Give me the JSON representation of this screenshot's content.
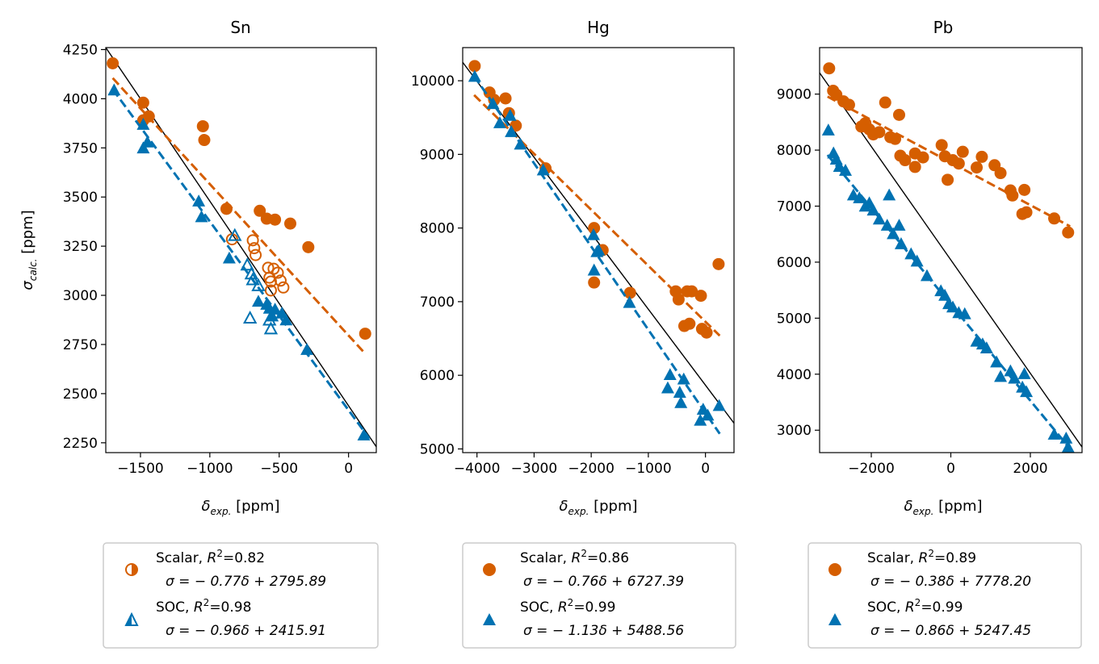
{
  "colors": {
    "scalar": "#d55e00",
    "soc": "#0072b2",
    "ideal": "#000000"
  },
  "chart_data": [
    {
      "type": "scatter",
      "title": "Sn",
      "xlabel": {
        "sym": "δ",
        "sub": "exp.",
        "unit": " [ppm]"
      },
      "ylabel": {
        "sym": "σ",
        "sub": "calc.",
        "unit": " [ppm]"
      },
      "xlim": [
        -1750,
        200
      ],
      "ylim": [
        2200,
        4260
      ],
      "xticks": [
        -1500,
        -1000,
        -500,
        0
      ],
      "xtick_labels": [
        "−1500",
        "−1000",
        "−500",
        "0"
      ],
      "yticks": [
        2250,
        2500,
        2750,
        3000,
        3250,
        3500,
        3750,
        4000,
        4250
      ],
      "ytick_labels": [
        "2250",
        "2500",
        "2750",
        "3000",
        "3250",
        "3500",
        "3750",
        "4000",
        "4250"
      ],
      "ideal_line": {
        "x": [
          -1750,
          200
        ],
        "y": [
          4260,
          2230
        ]
      },
      "series": [
        {
          "name": "Scalar",
          "marker": "circle",
          "color": "#d55e00",
          "fit": {
            "slope": -0.77,
            "intercept": 2795.89,
            "x_range": [
              -1700,
              120
            ]
          },
          "points": [
            [
              -1700,
              4180
            ],
            [
              -1480,
              3980
            ],
            [
              -1480,
              3890
            ],
            [
              -1440,
              3910
            ],
            [
              -1050,
              3860
            ],
            [
              -1040,
              3790
            ],
            [
              -880,
              3440
            ],
            [
              -640,
              3430
            ],
            [
              -590,
              3390
            ],
            [
              -530,
              3385
            ],
            [
              -420,
              3365
            ],
            [
              -290,
              3245
            ],
            [
              120,
              2805
            ]
          ],
          "hollow_points": [
            [
              -840,
              3285
            ],
            [
              -690,
              3280
            ],
            [
              -680,
              3240
            ],
            [
              -670,
              3205
            ],
            [
              -580,
              3140
            ],
            [
              -540,
              3135
            ],
            [
              -510,
              3115
            ],
            [
              -570,
              3090
            ],
            [
              -560,
              3070
            ],
            [
              -490,
              3075
            ],
            [
              -470,
              3040
            ],
            [
              -560,
              3025
            ]
          ]
        },
        {
          "name": "SOC",
          "marker": "triangle",
          "color": "#0072b2",
          "fit": {
            "slope": -0.96,
            "intercept": 2415.91,
            "x_range": [
              -1700,
              150
            ]
          },
          "points": [
            [
              -1690,
              4045
            ],
            [
              -1480,
              3870
            ],
            [
              -1480,
              3750
            ],
            [
              -1450,
              3780
            ],
            [
              -1080,
              3480
            ],
            [
              -1060,
              3400
            ],
            [
              -860,
              3190
            ],
            [
              -650,
              2970
            ],
            [
              -590,
              2955
            ],
            [
              -570,
              2935
            ],
            [
              -550,
              2895
            ],
            [
              -530,
              2930
            ],
            [
              -480,
              2910
            ],
            [
              -450,
              2875
            ],
            [
              -300,
              2725
            ],
            [
              110,
              2290
            ]
          ],
          "hollow_points": [
            [
              -820,
              3305
            ],
            [
              -730,
              3155
            ],
            [
              -700,
              3110
            ],
            [
              -690,
              3080
            ],
            [
              -650,
              3050
            ],
            [
              -710,
              2885
            ],
            [
              -570,
              2875
            ],
            [
              -560,
              2830
            ]
          ]
        }
      ],
      "legend": [
        {
          "label": "Scalar, ",
          "r2": "R",
          "r2_value": "=0.82",
          "equation": "σ = − 0.77δ + 2795.89"
        },
        {
          "label": "SOC, ",
          "r2": "R",
          "r2_value": "=0.98",
          "equation": "σ = − 0.96δ + 2415.91"
        }
      ]
    },
    {
      "type": "scatter",
      "title": "Hg",
      "xlabel": {
        "sym": "δ",
        "sub": "exp.",
        "unit": " [ppm]"
      },
      "ylabel": {
        "sym": "",
        "sub": "",
        "unit": ""
      },
      "xlim": [
        -4250,
        500
      ],
      "ylim": [
        4950,
        10450
      ],
      "xticks": [
        -4000,
        -3000,
        -2000,
        -1000,
        0
      ],
      "xtick_labels": [
        "−4000",
        "−3000",
        "−2000",
        "−1000",
        "0"
      ],
      "yticks": [
        5000,
        6000,
        7000,
        8000,
        9000,
        10000
      ],
      "ytick_labels": [
        "5000",
        "6000",
        "7000",
        "8000",
        "9000",
        "10000"
      ],
      "ideal_line": {
        "x": [
          -4250,
          500
        ],
        "y": [
          10250,
          5350
        ]
      },
      "series": [
        {
          "name": "Scalar",
          "marker": "circle",
          "color": "#d55e00",
          "fit": {
            "slope": -0.76,
            "intercept": 6727.39,
            "x_range": [
              -4050,
              250
            ]
          },
          "points": [
            [
              -4040,
              10200
            ],
            [
              -3780,
              9840
            ],
            [
              -3700,
              9740
            ],
            [
              -3500,
              9760
            ],
            [
              -3440,
              9560
            ],
            [
              -3320,
              9390
            ],
            [
              -2800,
              8810
            ],
            [
              -1950,
              8000
            ],
            [
              -1950,
              7260
            ],
            [
              -1800,
              7700
            ],
            [
              -1320,
              7120
            ],
            [
              -520,
              7140
            ],
            [
              -470,
              7030
            ],
            [
              -370,
              6670
            ],
            [
              -320,
              7140
            ],
            [
              -280,
              6700
            ],
            [
              -240,
              7140
            ],
            [
              -80,
              7080
            ],
            [
              -60,
              6630
            ],
            [
              20,
              6580
            ],
            [
              230,
              7510
            ]
          ],
          "hollow_points": []
        },
        {
          "name": "SOC",
          "marker": "triangle",
          "color": "#0072b2",
          "fit": {
            "slope": -1.13,
            "intercept": 5488.56,
            "x_range": [
              -4050,
              250
            ]
          },
          "points": [
            [
              -4040,
              10060
            ],
            [
              -3720,
              9690
            ],
            [
              -3600,
              9430
            ],
            [
              -3420,
              9530
            ],
            [
              -3400,
              9310
            ],
            [
              -3240,
              9140
            ],
            [
              -2840,
              8790
            ],
            [
              -1960,
              7910
            ],
            [
              -1950,
              7430
            ],
            [
              -1900,
              7680
            ],
            [
              -1870,
              7700
            ],
            [
              -1330,
              6990
            ],
            [
              -660,
              5830
            ],
            [
              -620,
              6010
            ],
            [
              -450,
              5770
            ],
            [
              -430,
              5630
            ],
            [
              -380,
              5950
            ],
            [
              -90,
              5390
            ],
            [
              -40,
              5540
            ],
            [
              40,
              5460
            ],
            [
              240,
              5590
            ]
          ],
          "hollow_points": []
        }
      ],
      "legend": [
        {
          "label": "Scalar, ",
          "r2": "R",
          "r2_value": "=0.86",
          "equation": "σ = − 0.76δ + 6727.39"
        },
        {
          "label": "SOC, ",
          "r2": "R",
          "r2_value": "=0.99",
          "equation": "σ = − 1.13δ + 5488.56"
        }
      ]
    },
    {
      "type": "scatter",
      "title": "Pb",
      "xlabel": {
        "sym": "δ",
        "sub": "exp.",
        "unit": " [ppm]"
      },
      "ylabel": {
        "sym": "",
        "sub": "",
        "unit": ""
      },
      "xlim": [
        -3300,
        3300
      ],
      "ylim": [
        2600,
        9830
      ],
      "xticks": [
        -2000,
        0,
        2000
      ],
      "xtick_labels": [
        "−2000",
        "0",
        "2000"
      ],
      "yticks": [
        3000,
        4000,
        5000,
        6000,
        7000,
        8000,
        9000
      ],
      "ytick_labels": [
        "3000",
        "4000",
        "5000",
        "6000",
        "7000",
        "8000",
        "9000"
      ],
      "ideal_line": {
        "x": [
          -3300,
          3300
        ],
        "y": [
          9380,
          2700
        ]
      },
      "series": [
        {
          "name": "Scalar",
          "marker": "circle",
          "color": "#d55e00",
          "fit": {
            "slope": -0.38,
            "intercept": 7778.2,
            "x_range": [
              -3100,
              3000
            ]
          },
          "points": [
            [
              -3060,
              9460
            ],
            [
              -2960,
              9060
            ],
            [
              -2880,
              8990
            ],
            [
              -2700,
              8870
            ],
            [
              -2560,
              8810
            ],
            [
              -2250,
              8420
            ],
            [
              -2150,
              8480
            ],
            [
              -2050,
              8370
            ],
            [
              -1950,
              8280
            ],
            [
              -1800,
              8320
            ],
            [
              -1650,
              8850
            ],
            [
              -1520,
              8230
            ],
            [
              -1400,
              8200
            ],
            [
              -1300,
              8630
            ],
            [
              -1270,
              7900
            ],
            [
              -1150,
              7820
            ],
            [
              -900,
              7700
            ],
            [
              -900,
              7940
            ],
            [
              -700,
              7870
            ],
            [
              -230,
              8090
            ],
            [
              -150,
              7890
            ],
            [
              -80,
              7470
            ],
            [
              50,
              7820
            ],
            [
              200,
              7760
            ],
            [
              300,
              7970
            ],
            [
              650,
              7690
            ],
            [
              780,
              7880
            ],
            [
              1100,
              7730
            ],
            [
              1250,
              7590
            ],
            [
              1500,
              7280
            ],
            [
              1550,
              7190
            ],
            [
              1800,
              6860
            ],
            [
              1850,
              7290
            ],
            [
              1900,
              6890
            ],
            [
              2600,
              6780
            ],
            [
              2950,
              6530
            ]
          ],
          "hollow_points": []
        },
        {
          "name": "SOC",
          "marker": "triangle",
          "color": "#0072b2",
          "fit": {
            "slope": -0.86,
            "intercept": 5247.45,
            "x_range": [
              -3100,
              3000
            ]
          },
          "points": [
            [
              -3080,
              8360
            ],
            [
              -2950,
              7950
            ],
            [
              -2880,
              7840
            ],
            [
              -2800,
              7710
            ],
            [
              -2650,
              7640
            ],
            [
              -2450,
              7200
            ],
            [
              -2300,
              7150
            ],
            [
              -2150,
              7000
            ],
            [
              -2050,
              7060
            ],
            [
              -1950,
              6930
            ],
            [
              -1800,
              6770
            ],
            [
              -1600,
              6660
            ],
            [
              -1550,
              7200
            ],
            [
              -1450,
              6510
            ],
            [
              -1300,
              6660
            ],
            [
              -1250,
              6330
            ],
            [
              -1000,
              6150
            ],
            [
              -850,
              6020
            ],
            [
              -600,
              5760
            ],
            [
              -250,
              5490
            ],
            [
              -150,
              5410
            ],
            [
              -50,
              5260
            ],
            [
              50,
              5200
            ],
            [
              200,
              5100
            ],
            [
              350,
              5080
            ],
            [
              650,
              4590
            ],
            [
              800,
              4540
            ],
            [
              900,
              4470
            ],
            [
              1150,
              4220
            ],
            [
              1250,
              3960
            ],
            [
              1500,
              4060
            ],
            [
              1600,
              3930
            ],
            [
              1800,
              3770
            ],
            [
              1850,
              4010
            ],
            [
              1900,
              3690
            ],
            [
              2600,
              2930
            ],
            [
              2900,
              2860
            ],
            [
              2950,
              2700
            ]
          ],
          "hollow_points": []
        }
      ],
      "legend": [
        {
          "label": "Scalar, ",
          "r2": "R",
          "r2_value": "=0.89",
          "equation": "σ = − 0.38δ + 7778.20"
        },
        {
          "label": "SOC, ",
          "r2": "R",
          "r2_value": "=0.99",
          "equation": "σ = − 0.86δ + 5247.45"
        }
      ]
    }
  ]
}
